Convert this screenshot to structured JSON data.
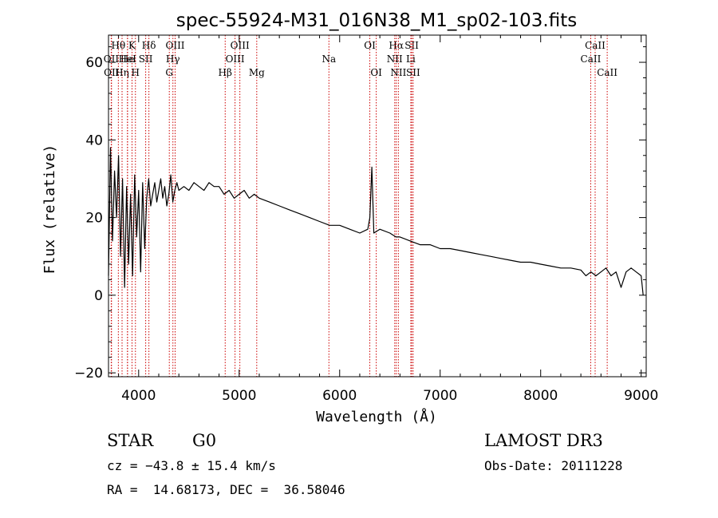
{
  "chart_data": {
    "type": "line",
    "title": "spec-55924-M31_016N38_M1_sp02-103.fits",
    "xlabel": "Wavelength (Å)",
    "ylabel": "Flux (relative)",
    "xlim": [
      3700,
      9050
    ],
    "ylim": [
      -21,
      67
    ],
    "xticks": [
      4000,
      5000,
      6000,
      7000,
      8000,
      9000
    ],
    "yticks": [
      -20,
      0,
      20,
      40,
      60
    ],
    "series": [
      {
        "name": "flux",
        "x": [
          3700,
          3720,
          3740,
          3760,
          3780,
          3800,
          3820,
          3840,
          3860,
          3880,
          3900,
          3920,
          3940,
          3960,
          3980,
          4000,
          4020,
          4040,
          4060,
          4080,
          4100,
          4120,
          4140,
          4160,
          4180,
          4200,
          4220,
          4240,
          4260,
          4280,
          4300,
          4320,
          4340,
          4360,
          4380,
          4400,
          4450,
          4500,
          4550,
          4600,
          4650,
          4700,
          4750,
          4800,
          4850,
          4900,
          4950,
          5000,
          5050,
          5100,
          5150,
          5200,
          5300,
          5400,
          5500,
          5600,
          5700,
          5800,
          5900,
          6000,
          6100,
          6200,
          6280,
          6300,
          6320,
          6340,
          6400,
          6500,
          6560,
          6600,
          6700,
          6800,
          6900,
          7000,
          7100,
          7200,
          7300,
          7400,
          7500,
          7600,
          7700,
          7800,
          7900,
          8000,
          8100,
          8200,
          8300,
          8400,
          8450,
          8500,
          8550,
          8600,
          8650,
          8700,
          8750,
          8800,
          8850,
          8900,
          8950,
          9000,
          9020
        ],
        "values": [
          5,
          38,
          14,
          32,
          20,
          36,
          10,
          30,
          2,
          28,
          8,
          26,
          5,
          31,
          15,
          27,
          6,
          29,
          12,
          25,
          30,
          23,
          26,
          29,
          24,
          27,
          30,
          25,
          28,
          23,
          26,
          31,
          24,
          27,
          29,
          27,
          28,
          27,
          29,
          28,
          27,
          29,
          28,
          28,
          26,
          27,
          25,
          26,
          27,
          25,
          26,
          25,
          24,
          23,
          22,
          21,
          20,
          19,
          18,
          18,
          17,
          16,
          17,
          20,
          33,
          16,
          17,
          16,
          15,
          15,
          14,
          13,
          13,
          12,
          12,
          11.5,
          11,
          10.5,
          10,
          9.5,
          9,
          8.5,
          8.5,
          8,
          7.5,
          7,
          7,
          6.5,
          5,
          6,
          5,
          6,
          7,
          5,
          6,
          2,
          6,
          7,
          6,
          5,
          0
        ]
      }
    ],
    "lines": [
      {
        "label": "Hθ",
        "x": 3798,
        "row": 0
      },
      {
        "label": "OII",
        "x": 3727,
        "row": 1
      },
      {
        "label": "OII",
        "x": 3730,
        "row": 2
      },
      {
        "label": "He",
        "x": 3889,
        "row": 1
      },
      {
        "label": "Hη",
        "x": 3835,
        "row": 2
      },
      {
        "label": "K",
        "x": 3934,
        "row": 0
      },
      {
        "label": "HeI",
        "x": 3889,
        "row": 1
      },
      {
        "label": "H",
        "x": 3968,
        "row": 2
      },
      {
        "label": "SII",
        "x": 4070,
        "row": 1
      },
      {
        "label": "Hδ",
        "x": 4102,
        "row": 0
      },
      {
        "label": "OIII",
        "x": 4363,
        "row": 0
      },
      {
        "label": "Hγ",
        "x": 4341,
        "row": 1
      },
      {
        "label": "G",
        "x": 4305,
        "row": 2
      },
      {
        "label": "Hβ",
        "x": 4861,
        "row": 2
      },
      {
        "label": "OIII",
        "x": 5007,
        "row": 0
      },
      {
        "label": "OIII",
        "x": 4959,
        "row": 1
      },
      {
        "label": "Mg",
        "x": 5175,
        "row": 2
      },
      {
        "label": "Na",
        "x": 5893,
        "row": 1
      },
      {
        "label": "OI",
        "x": 6300,
        "row": 0
      },
      {
        "label": "OI",
        "x": 6364,
        "row": 2
      },
      {
        "label": "Hα",
        "x": 6563,
        "row": 0
      },
      {
        "label": "NII",
        "x": 6548,
        "row": 1
      },
      {
        "label": "NII",
        "x": 6584,
        "row": 2
      },
      {
        "label": "SII",
        "x": 6717,
        "row": 0
      },
      {
        "label": "Li",
        "x": 6708,
        "row": 1
      },
      {
        "label": "SII",
        "x": 6731,
        "row": 2
      },
      {
        "label": "CaII",
        "x": 8542,
        "row": 0
      },
      {
        "label": "CaII",
        "x": 8498,
        "row": 1
      },
      {
        "label": "CaII",
        "x": 8662,
        "row": 2
      }
    ]
  },
  "info": {
    "class": "STAR",
    "subclass": "G0",
    "survey": "LAMOST DR3",
    "cz": "cz = −43.8 ± 15.4 km/s",
    "obs_date": "Obs-Date: 20111228",
    "radec": "RA =  14.68173, DEC =  36.58046"
  }
}
